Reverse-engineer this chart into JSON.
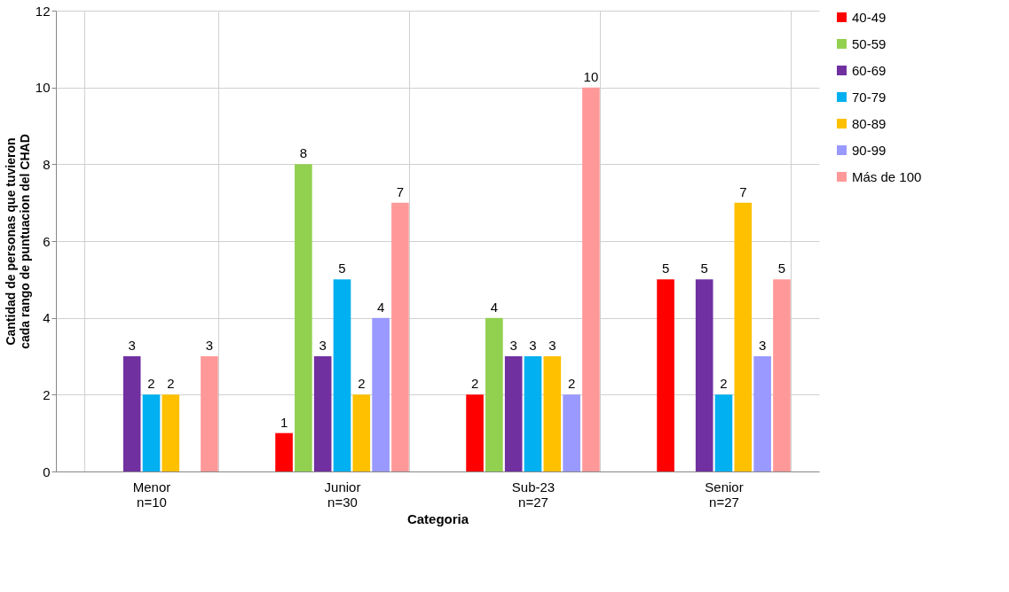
{
  "chart_data": {
    "type": "bar",
    "xlabel": "Categoria",
    "ylabel": "Cantidad de personas que tuvieron cada rango de puntuacion del CHAD",
    "categories": [
      "Menor n=10",
      "Junior n=30",
      "Sub-23 n=27",
      "Senior n=27"
    ],
    "series": [
      {
        "name": "40-49",
        "color": "#ff0000",
        "values": [
          null,
          1,
          2,
          5
        ]
      },
      {
        "name": "50-59",
        "color": "#92d050",
        "values": [
          null,
          8,
          4,
          null
        ]
      },
      {
        "name": "60-69",
        "color": "#7030a0",
        "values": [
          3,
          3,
          3,
          5
        ]
      },
      {
        "name": "70-79",
        "color": "#00b0f0",
        "values": [
          2,
          5,
          3,
          2
        ]
      },
      {
        "name": "80-89",
        "color": "#ffc000",
        "values": [
          2,
          2,
          3,
          7
        ]
      },
      {
        "name": "90-99",
        "color": "#9999ff",
        "values": [
          null,
          4,
          2,
          3
        ]
      },
      {
        "name": "Más de 100",
        "color": "#ff9999",
        "values": [
          3,
          7,
          10,
          5
        ]
      }
    ],
    "ylim": [
      0,
      12
    ],
    "yticks": [
      0,
      2,
      4,
      6,
      8,
      10,
      12
    ],
    "grid": true,
    "legend": "right",
    "data_labels": true
  }
}
